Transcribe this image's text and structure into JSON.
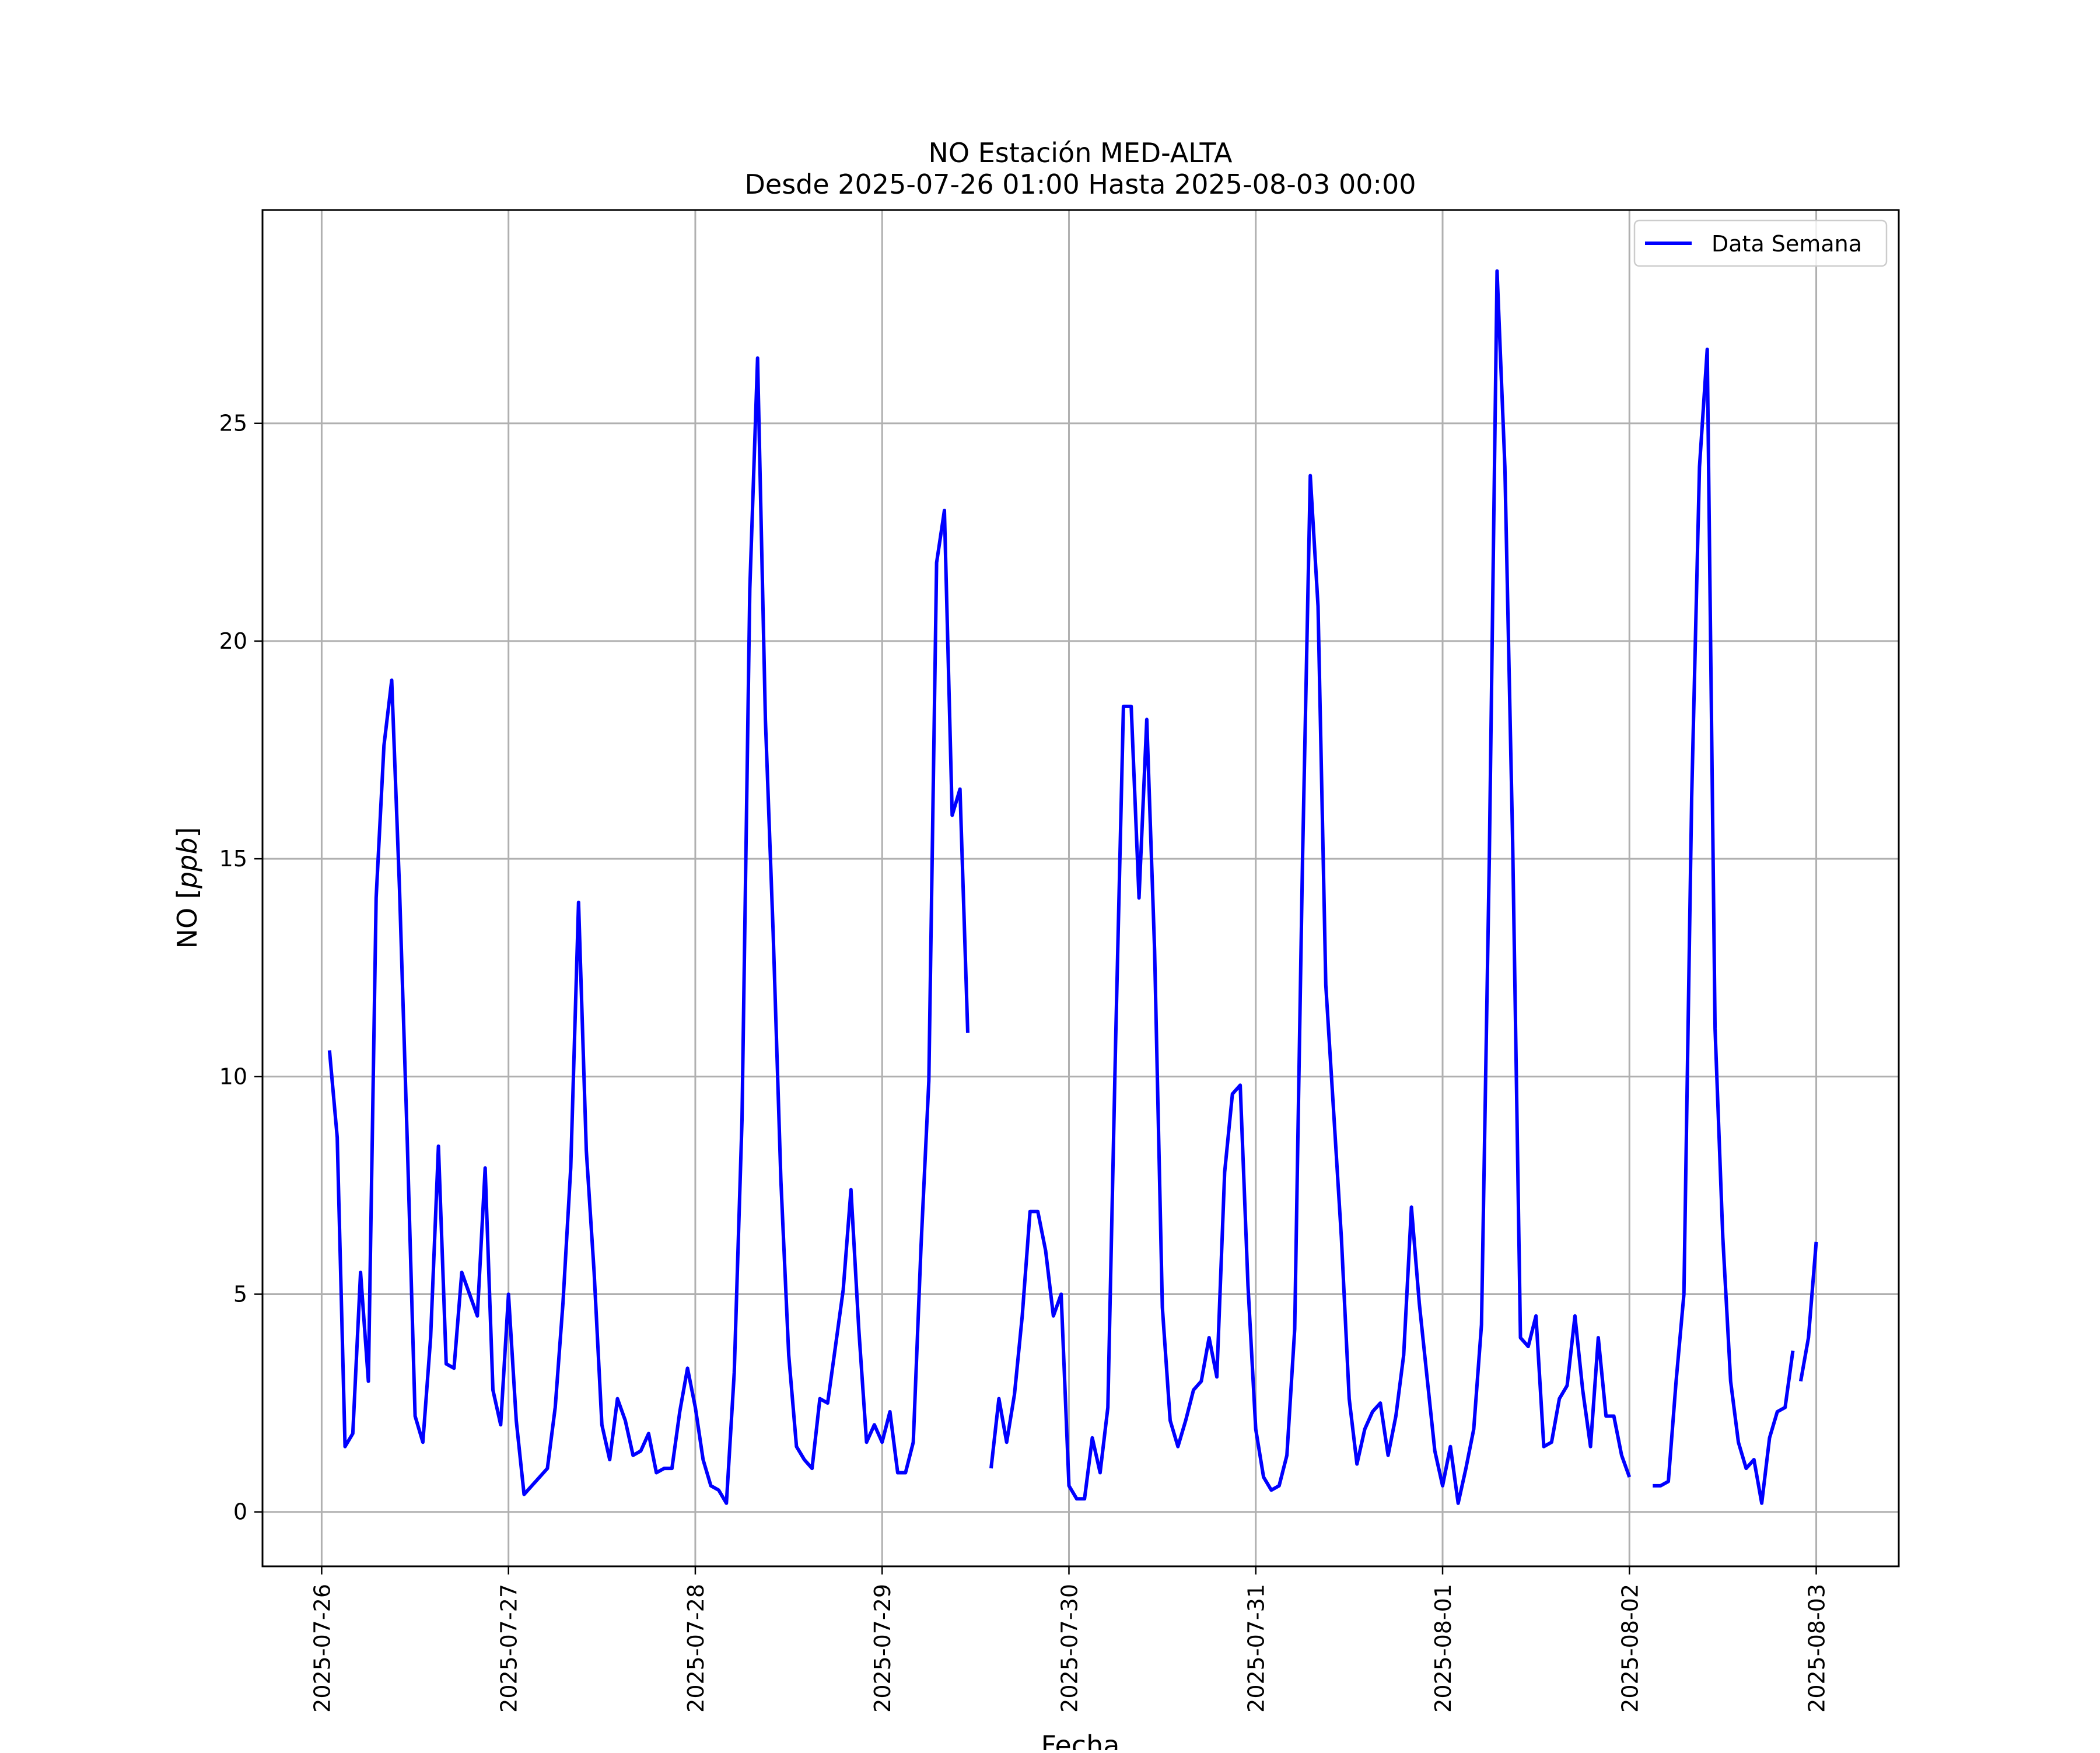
{
  "chart_data": {
    "type": "line",
    "title": "NO Estación MED-ALTA",
    "subtitle": "Desde 2025-07-26 01:00 Hasta 2025-08-03 00:00",
    "xlabel": "Fecha",
    "ylabel": "NO [ppb]",
    "ylabel_main": "NO ",
    "ylabel_unit": "ppb",
    "x_ticks": [
      "2025-07-26",
      "2025-07-27",
      "2025-07-28",
      "2025-07-29",
      "2025-07-30",
      "2025-07-31",
      "2025-08-01",
      "2025-08-02",
      "2025-08-03"
    ],
    "y_ticks": [
      "0",
      "5",
      "10",
      "15",
      "20",
      "25"
    ],
    "ylim": [
      -1.25,
      29.9
    ],
    "xlim": [
      "2025-07-25 16:24",
      "2025-08-03 10:36"
    ],
    "grid": true,
    "legend_position": "top-right",
    "series": [
      {
        "name": "Data Semana",
        "color": "#0000ff",
        "segments": [
          {
            "start": "2025-07-26 01:00",
            "step_hours": 1,
            "values": [
              10.6,
              8.6,
              1.5,
              1.8,
              5.5,
              3.0,
              14.1,
              17.6,
              19.1,
              14.3,
              8.5,
              2.2,
              1.6,
              4.0,
              8.4,
              3.4,
              3.3,
              5.5,
              5.0,
              4.5,
              7.9,
              2.8,
              2.0,
              5.0,
              2.1,
              0.4,
              0.6,
              0.8,
              1.0,
              2.4,
              4.8,
              7.9,
              14.0,
              8.3,
              5.5,
              2.0,
              1.2,
              2.6,
              2.1,
              1.3,
              1.4,
              1.8,
              0.9,
              1.0,
              1.0,
              2.3,
              3.3,
              2.4,
              1.2,
              0.6,
              0.5,
              0.2,
              3.2,
              9.0,
              21.2,
              26.5,
              18.2,
              13.3,
              7.6,
              3.6,
              1.5,
              1.2,
              1.0,
              2.6,
              2.5,
              3.8,
              5.1,
              7.4,
              4.2,
              1.6,
              2.0,
              1.6,
              2.3,
              0.9,
              0.9,
              1.6,
              6.1,
              9.9,
              21.8,
              23.0,
              16.0,
              16.6,
              11.0
            ]
          },
          {
            "start": "2025-07-29 14:00",
            "step_hours": 1,
            "values": [
              1.0,
              2.6,
              1.6,
              2.7,
              4.5,
              6.9,
              6.9,
              6.0,
              4.5,
              5.0,
              0.6,
              0.3,
              0.3,
              1.7,
              0.9,
              2.4,
              10.8,
              18.5,
              18.5,
              14.1,
              18.2,
              12.9,
              4.7,
              2.1,
              1.5,
              2.1,
              2.8,
              3.0,
              4.0,
              3.1,
              7.8,
              9.6,
              9.8,
              5.2,
              1.9,
              0.8,
              0.5,
              0.6,
              1.3,
              4.2,
              14.9,
              23.8,
              20.8,
              12.1,
              9.2,
              6.3,
              2.6,
              1.1,
              1.9,
              2.3,
              2.5,
              1.3,
              2.2,
              3.6,
              7.0,
              4.8,
              3.1,
              1.4,
              0.6,
              1.5,
              0.2,
              1.0,
              1.9,
              4.3,
              15.0,
              28.5,
              24.0,
              15.4,
              4.0,
              3.8,
              4.5,
              1.5,
              1.6,
              2.6,
              2.9,
              4.5,
              2.8,
              1.5,
              4.0,
              2.2,
              2.2,
              1.3,
              0.8
            ]
          },
          {
            "start": "2025-08-02 03:00",
            "step_hours": 1,
            "values": [
              0.6,
              0.6,
              0.7,
              3.0,
              5.0,
              16.4,
              24.0,
              26.7,
              11.1,
              6.3,
              3.0,
              1.6,
              1.0,
              1.2,
              0.2,
              1.7,
              2.3,
              2.4,
              3.7
            ]
          },
          {
            "start": "2025-08-02 22:00",
            "step_hours": 1,
            "values": [
              3.0,
              4.0,
              6.2
            ]
          }
        ]
      }
    ]
  }
}
